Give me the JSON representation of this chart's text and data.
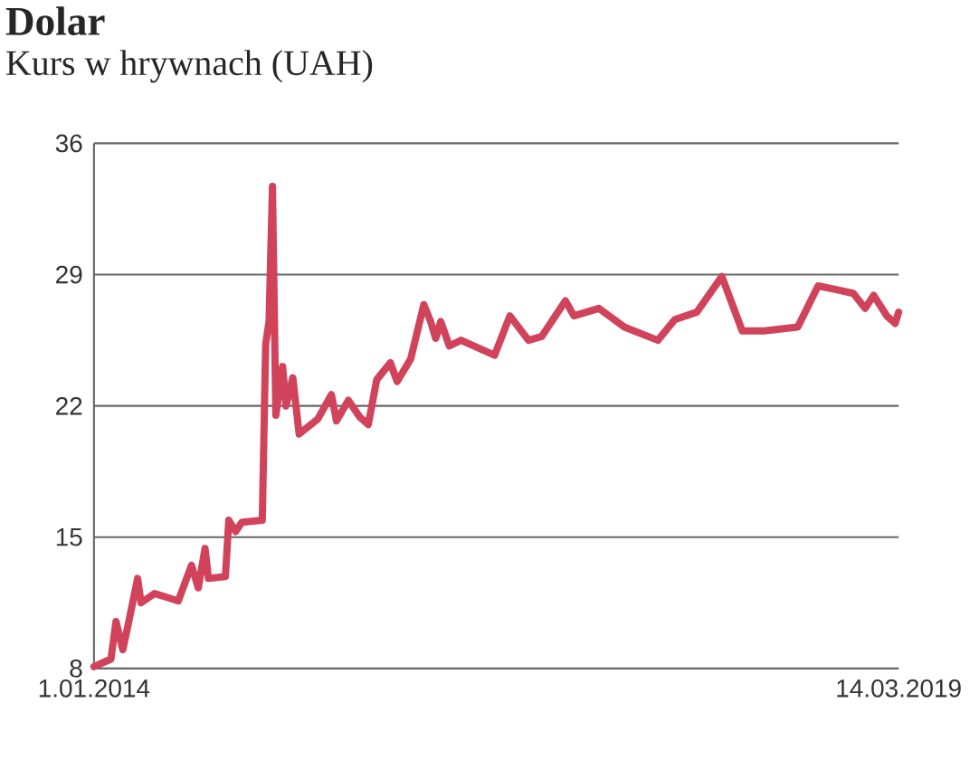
{
  "chart_data": {
    "type": "line",
    "title": "Dolar",
    "subtitle": "Kurs w hrywnach (UAH)",
    "x": [
      "2014-01-01",
      "2014-02-10",
      "2014-02-22",
      "2014-03-10",
      "2014-03-25",
      "2014-04-14",
      "2014-04-22",
      "2014-05-24",
      "2014-07-19",
      "2014-08-19",
      "2014-09-04",
      "2014-09-20",
      "2014-09-28",
      "2014-11-07",
      "2014-11-15",
      "2014-12-01",
      "2014-12-16",
      "2015-02-02",
      "2015-02-10",
      "2015-02-18",
      "2015-02-26",
      "2015-03-06",
      "2015-03-22",
      "2015-03-30",
      "2015-04-15",
      "2015-04-30",
      "2015-05-16",
      "2015-06-13",
      "2015-07-15",
      "2015-07-27",
      "2015-08-24",
      "2015-09-20",
      "2015-10-10",
      "2015-10-30",
      "2015-12-01",
      "2015-12-17",
      "2016-01-18",
      "2016-02-18",
      "2016-03-05",
      "2016-03-17",
      "2016-03-29",
      "2016-04-18",
      "2016-05-16",
      "2016-08-03",
      "2016-09-08",
      "2016-10-22",
      "2016-11-22",
      "2017-01-17",
      "2017-02-06",
      "2017-04-06",
      "2017-06-05",
      "2017-08-23",
      "2017-10-02",
      "2017-11-23",
      "2018-01-21",
      "2018-03-10",
      "2018-04-30",
      "2018-07-19",
      "2018-09-05",
      "2018-10-18",
      "2018-11-27",
      "2018-12-25",
      "2019-01-14",
      "2019-02-14",
      "2019-03-06",
      "2019-03-14"
    ],
    "series": [
      {
        "color": "#d1435b",
        "values": [
          8.1,
          8.5,
          10.5,
          9,
          10.6,
          12.8,
          11.5,
          12.0,
          11.6,
          13.5,
          12.3,
          14.4,
          12.8,
          12.9,
          15.9,
          15.3,
          15.8,
          15.9,
          25.3,
          26.5,
          33.7,
          21.5,
          24.1,
          22,
          23.5,
          20.5,
          20.8,
          21.3,
          22.6,
          21.2,
          22.3,
          21.4,
          21,
          23.4,
          24.3,
          23.3,
          24.5,
          27.4,
          26.5,
          25.6,
          26.5,
          25.2,
          25.5,
          24.7,
          26.8,
          25.5,
          25.7,
          27.6,
          26.8,
          27.2,
          26.2,
          25.5,
          26.6,
          27.0,
          28.9,
          26.0,
          26.0,
          26.2,
          28.4,
          28.2,
          28.0,
          27.2,
          27.9,
          26.8,
          26.4,
          27.0
        ]
      }
    ],
    "xlim": [
      "2014-01-01",
      "2019-03-14"
    ],
    "xticks": [
      {
        "value": "2014-01-01",
        "label": "1.01.2014"
      },
      {
        "value": "2019-03-14",
        "label": "14.03.2019"
      }
    ],
    "ylim": [
      8,
      36
    ],
    "yticks": [
      8,
      15,
      22,
      29,
      36
    ],
    "grid": "y",
    "marker": "none",
    "line_style": "solid"
  }
}
